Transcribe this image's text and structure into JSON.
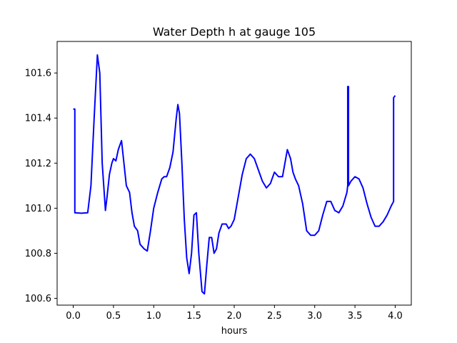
{
  "chart_data": {
    "type": "line",
    "title": "Water Depth h at gauge 105",
    "xlabel": "hours",
    "ylabel": "",
    "xlim": [
      -0.2,
      4.2
    ],
    "ylim": [
      100.57,
      101.74
    ],
    "xticks": [
      0.0,
      0.5,
      1.0,
      1.5,
      2.0,
      2.5,
      3.0,
      3.5,
      4.0
    ],
    "xtick_labels": [
      "0.0",
      "0.5",
      "1.0",
      "1.5",
      "2.0",
      "2.5",
      "3.0",
      "3.5",
      "4.0"
    ],
    "yticks": [
      100.6,
      100.8,
      101.0,
      101.2,
      101.4,
      101.6
    ],
    "ytick_labels": [
      "100.6",
      "100.8",
      "101.0",
      "101.2",
      "101.4",
      "101.6"
    ],
    "grid": false,
    "series": [
      {
        "color": "#0000ff",
        "x": [
          0.0,
          0.02,
          0.02,
          0.1,
          0.18,
          0.22,
          0.26,
          0.3,
          0.33,
          0.36,
          0.4,
          0.42,
          0.45,
          0.48,
          0.5,
          0.53,
          0.56,
          0.6,
          0.63,
          0.66,
          0.7,
          0.73,
          0.76,
          0.8,
          0.83,
          0.88,
          0.92,
          0.96,
          1.0,
          1.05,
          1.1,
          1.13,
          1.16,
          1.2,
          1.24,
          1.28,
          1.3,
          1.32,
          1.35,
          1.38,
          1.41,
          1.44,
          1.47,
          1.5,
          1.53,
          1.56,
          1.6,
          1.63,
          1.66,
          1.69,
          1.72,
          1.75,
          1.78,
          1.81,
          1.85,
          1.9,
          1.93,
          1.96,
          2.0,
          2.05,
          2.1,
          2.15,
          2.2,
          2.25,
          2.3,
          2.35,
          2.4,
          2.45,
          2.5,
          2.55,
          2.6,
          2.63,
          2.66,
          2.7,
          2.73,
          2.76,
          2.8,
          2.85,
          2.9,
          2.95,
          3.0,
          3.05,
          3.1,
          3.15,
          3.2,
          3.25,
          3.3,
          3.35,
          3.4,
          3.41,
          3.41,
          3.42,
          3.42,
          3.45,
          3.5,
          3.55,
          3.6,
          3.65,
          3.7,
          3.75,
          3.8,
          3.85,
          3.9,
          3.95,
          3.98,
          3.98,
          4.0
        ],
        "y": [
          101.44,
          101.44,
          100.98,
          100.978,
          100.98,
          101.1,
          101.4,
          101.68,
          101.6,
          101.2,
          100.99,
          101.05,
          101.15,
          101.2,
          101.22,
          101.21,
          101.26,
          101.3,
          101.2,
          101.1,
          101.07,
          100.98,
          100.92,
          100.9,
          100.84,
          100.82,
          100.81,
          100.9,
          101.0,
          101.07,
          101.13,
          101.14,
          101.14,
          101.18,
          101.25,
          101.4,
          101.46,
          101.42,
          101.2,
          100.95,
          100.78,
          100.71,
          100.8,
          100.97,
          100.98,
          100.8,
          100.63,
          100.62,
          100.75,
          100.87,
          100.87,
          100.8,
          100.82,
          100.89,
          100.93,
          100.93,
          100.91,
          100.92,
          100.95,
          101.05,
          101.15,
          101.22,
          101.24,
          101.22,
          101.17,
          101.12,
          101.09,
          101.11,
          101.16,
          101.14,
          101.14,
          101.2,
          101.26,
          101.22,
          101.16,
          101.13,
          101.1,
          101.02,
          100.9,
          100.88,
          100.88,
          100.9,
          100.97,
          101.03,
          101.03,
          100.99,
          100.98,
          101.01,
          101.07,
          101.1,
          101.54,
          101.54,
          101.1,
          101.12,
          101.14,
          101.13,
          101.09,
          101.02,
          100.96,
          100.92,
          100.92,
          100.94,
          100.97,
          101.01,
          101.03,
          101.49,
          101.5
        ]
      }
    ]
  }
}
